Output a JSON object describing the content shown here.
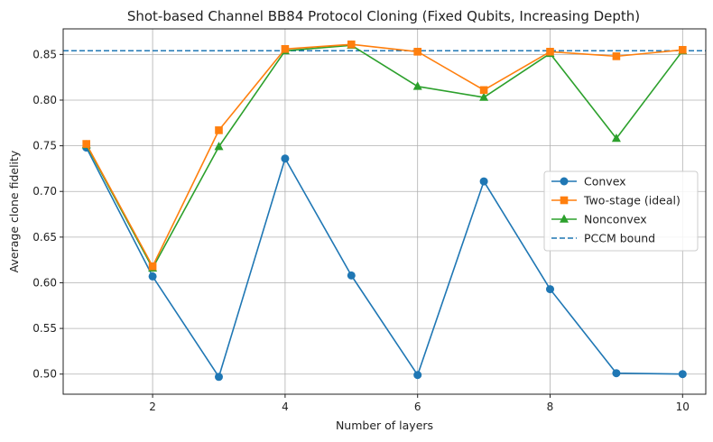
{
  "chart_data": {
    "type": "line",
    "title": "Shot-based Channel BB84 Protocol Cloning (Fixed Qubits, Increasing Depth)",
    "xlabel": "Number of layers",
    "ylabel": "Average clone fidelity",
    "xlim": [
      0.65,
      10.35
    ],
    "ylim": [
      0.478,
      0.878
    ],
    "xticks": [
      2,
      4,
      6,
      8,
      10
    ],
    "yticks": [
      0.5,
      0.55,
      0.6,
      0.65,
      0.7,
      0.75,
      0.8,
      0.85
    ],
    "xtick_labels": [
      "2",
      "4",
      "6",
      "8",
      "10"
    ],
    "ytick_labels": [
      "0.50",
      "0.55",
      "0.60",
      "0.65",
      "0.70",
      "0.75",
      "0.80",
      "0.85"
    ],
    "grid": true,
    "legend_position": "center-right",
    "x": [
      1,
      2,
      3,
      4,
      5,
      6,
      7,
      8,
      9,
      10
    ],
    "series": [
      {
        "name": "Convex",
        "color": "#1f77b4",
        "marker": "circle",
        "values": [
          0.748,
          0.607,
          0.497,
          0.736,
          0.608,
          0.499,
          0.711,
          0.593,
          0.501,
          0.5
        ]
      },
      {
        "name": "Two-stage (ideal)",
        "color": "#ff7f0e",
        "marker": "square",
        "values": [
          0.752,
          0.618,
          0.767,
          0.856,
          0.861,
          0.853,
          0.811,
          0.853,
          0.848,
          0.855
        ]
      },
      {
        "name": "Nonconvex",
        "color": "#2ca02c",
        "marker": "triangle",
        "values": [
          0.751,
          0.616,
          0.749,
          0.854,
          0.86,
          0.815,
          0.803,
          0.851,
          0.758,
          0.854
        ]
      }
    ],
    "reference_lines": [
      {
        "name": "PCCM bound",
        "y": 0.854,
        "color": "#1f77b4",
        "style": "dashed"
      }
    ]
  }
}
